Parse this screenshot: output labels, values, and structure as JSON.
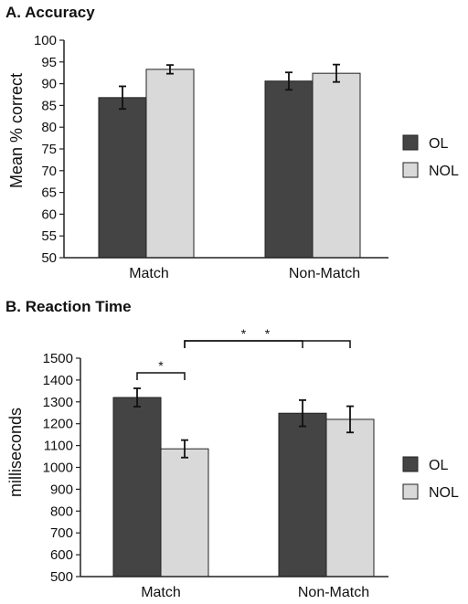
{
  "chart_data": [
    {
      "type": "bar",
      "title": "A. Accuracy",
      "ylabel": "Mean % correct",
      "xlabel": "",
      "ylim": [
        50,
        100
      ],
      "yticks": [
        50,
        55,
        60,
        65,
        70,
        75,
        80,
        85,
        90,
        95,
        100
      ],
      "categories": [
        "Match",
        "Non-Match"
      ],
      "series": [
        {
          "name": "OL",
          "color": "#444444",
          "values": [
            86.8,
            90.6
          ],
          "errors": [
            2.6,
            2.0
          ]
        },
        {
          "name": "NOL",
          "color": "#d9d9d9",
          "values": [
            93.3,
            92.4
          ],
          "errors": [
            1.0,
            2.0
          ]
        }
      ],
      "legend": "right",
      "grid": false,
      "annotations": []
    },
    {
      "type": "bar",
      "title": "B. Reaction Time",
      "ylabel": "milliseconds",
      "xlabel": "",
      "ylim": [
        500,
        1500
      ],
      "yticks": [
        500,
        600,
        700,
        800,
        900,
        1000,
        1100,
        1200,
        1300,
        1400,
        1500
      ],
      "categories": [
        "Match",
        "Non-Match"
      ],
      "series": [
        {
          "name": "OL",
          "color": "#444444",
          "values": [
            1320,
            1248
          ],
          "errors": [
            42,
            60
          ]
        },
        {
          "name": "NOL",
          "color": "#d9d9d9",
          "values": [
            1085,
            1220
          ],
          "errors": [
            40,
            60
          ]
        }
      ],
      "legend": "right",
      "grid": false,
      "annotations": [
        {
          "text": "*",
          "from": {
            "category": 0,
            "series": 0
          },
          "to": {
            "category": 0,
            "series": 1
          }
        },
        {
          "text": "*",
          "from": {
            "category": 0,
            "series": 1
          },
          "to": {
            "category": 1,
            "series": 0
          }
        },
        {
          "text": "*",
          "from": {
            "category": 0,
            "series": 1
          },
          "to": {
            "category": 1,
            "series": 1
          }
        }
      ]
    }
  ]
}
